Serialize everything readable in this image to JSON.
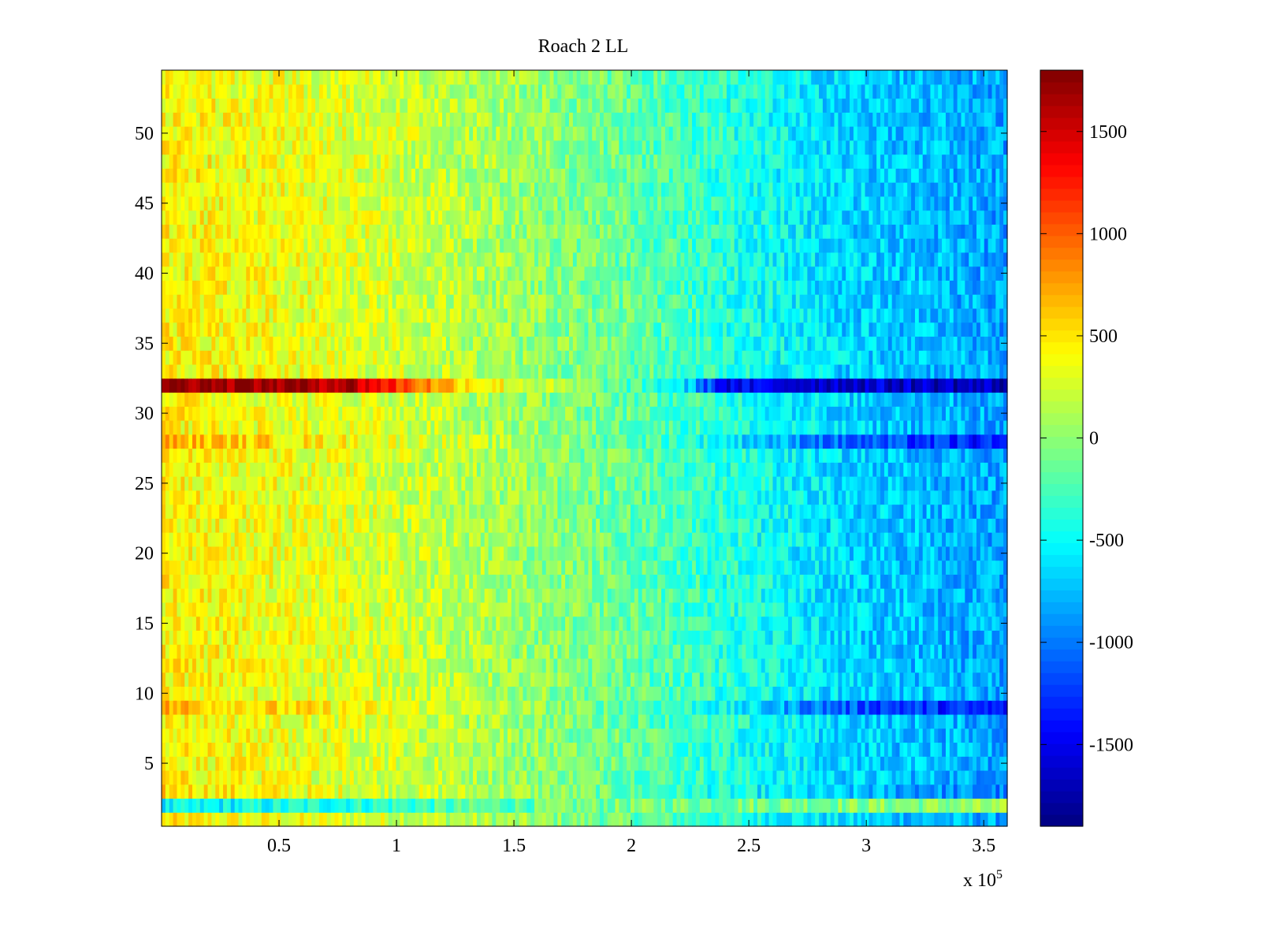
{
  "chart_data": {
    "type": "heatmap",
    "title": "Roach 2 LL",
    "xlabel": "",
    "ylabel": "",
    "x_multiplier_label": {
      "base": "x 10",
      "exponent": "5"
    },
    "xlim": [
      0,
      3.6
    ],
    "x_ticks": [
      0.5,
      1,
      1.5,
      2,
      2.5,
      3,
      3.5
    ],
    "x_tick_labels": [
      "0.5",
      "1",
      "1.5",
      "2",
      "2.5",
      "3",
      "3.5"
    ],
    "ylim": [
      0.5,
      54.5
    ],
    "y_ticks": [
      5,
      10,
      15,
      20,
      25,
      30,
      35,
      40,
      45,
      50
    ],
    "y_tick_labels": [
      "5",
      "10",
      "15",
      "20",
      "25",
      "30",
      "35",
      "40",
      "45",
      "50"
    ],
    "rows": 54,
    "colorbar": {
      "colormap": "jet",
      "clim": [
        -1900,
        1800
      ],
      "ticks": [
        1500,
        1000,
        500,
        0,
        -500,
        -1000,
        -1500
      ],
      "tick_labels": [
        "1500",
        "1000",
        "500",
        "0",
        "-500",
        "-1000",
        "-1500"
      ]
    },
    "row_profiles": [
      {
        "rows": [
          32
        ],
        "values_along_x": [
          {
            "x": 0,
            "v": 1800
          },
          {
            "x": 0.8,
            "v": 1650
          },
          {
            "x": 1.2,
            "v": 700
          },
          {
            "x": 1.6,
            "v": 200
          },
          {
            "x": 2.2,
            "v": -500
          },
          {
            "x": 2.4,
            "v": -1500
          },
          {
            "x": 3.6,
            "v": -1700
          }
        ]
      },
      {
        "rows": [
          9,
          28
        ],
        "values_along_x": [
          {
            "x": 0,
            "v": 700
          },
          {
            "x": 1.2,
            "v": 250
          },
          {
            "x": 2.2,
            "v": -300
          },
          {
            "x": 2.9,
            "v": -1100
          },
          {
            "x": 3.6,
            "v": -1400
          }
        ]
      },
      {
        "rows": [
          2
        ],
        "values_along_x": [
          {
            "x": 0,
            "v": -600
          },
          {
            "x": 1.8,
            "v": -100
          },
          {
            "x": 3.6,
            "v": 0
          }
        ]
      },
      {
        "rows": [
          3
        ],
        "values_along_x": [
          {
            "x": 0,
            "v": 550
          },
          {
            "x": 1.5,
            "v": 100
          },
          {
            "x": 2.8,
            "v": -700
          },
          {
            "x": 3.6,
            "v": -1000
          }
        ]
      },
      {
        "rows": [
          1,
          4,
          5,
          6,
          7,
          8,
          10,
          11,
          12,
          13,
          14,
          15,
          16,
          17,
          18,
          19,
          20,
          21,
          22,
          23,
          24,
          25,
          26,
          27,
          29,
          30,
          31,
          33,
          34,
          35,
          36,
          37,
          38,
          39,
          40,
          41,
          42,
          43,
          44,
          45,
          46,
          47,
          48,
          49,
          50,
          51,
          52,
          53,
          54
        ],
        "values_along_x": [
          {
            "x": 0,
            "v": 450
          },
          {
            "x": 1.0,
            "v": 250
          },
          {
            "x": 2.0,
            "v": -150
          },
          {
            "x": 2.9,
            "v": -650
          },
          {
            "x": 3.6,
            "v": -850
          }
        ]
      }
    ]
  }
}
